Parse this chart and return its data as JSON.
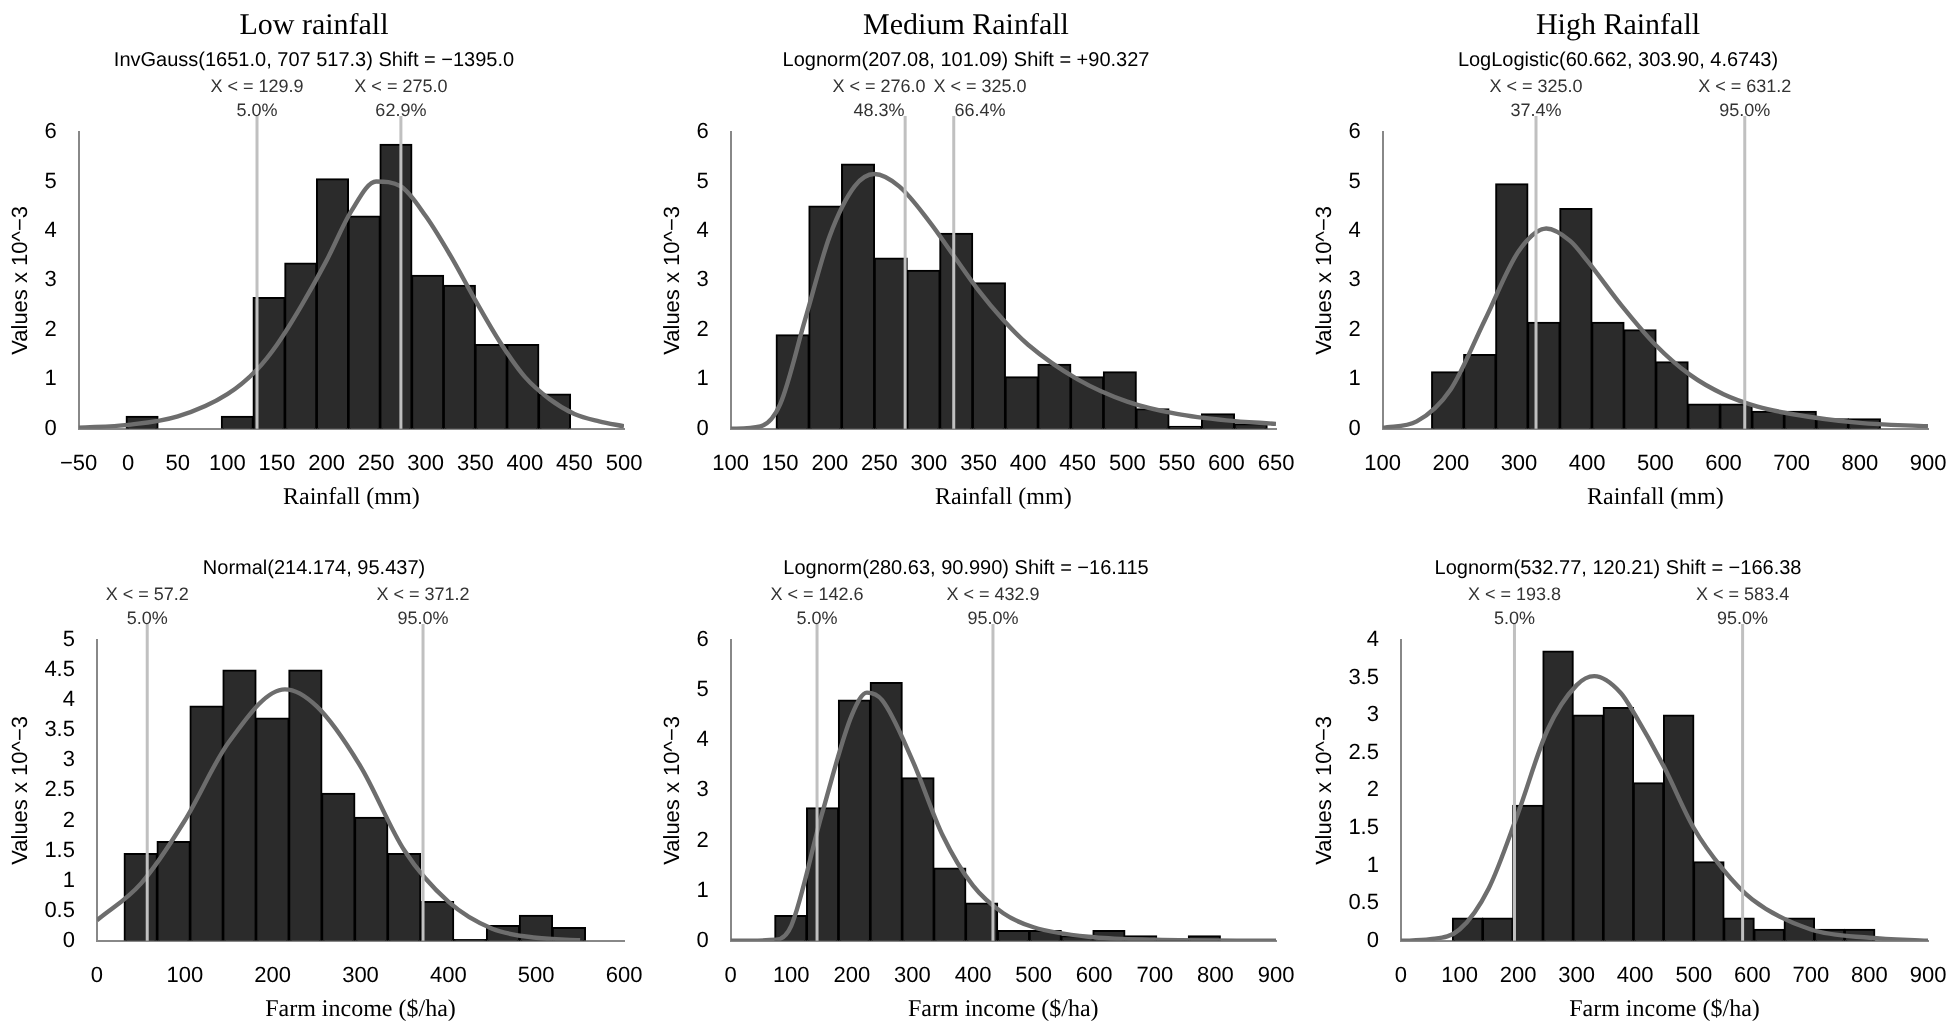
{
  "chart_data": [
    {
      "type": "histogram",
      "title": "Low rainfall",
      "subtitle": "InvGauss(1651.0, 707 517.3) Shift = −1395.0",
      "xlabel": "Rainfall (mm)",
      "ylabel": "Values x 10^−3",
      "color": "#2b2b2b",
      "legend": false,
      "marker": "none",
      "bins": [
        -2,
        30,
        62,
        94,
        126,
        158,
        190,
        222,
        254,
        286,
        318,
        350,
        382,
        414,
        446
      ],
      "values": [
        0.25,
        0,
        0,
        0.25,
        2.65,
        3.35,
        5.05,
        4.3,
        5.75,
        3.1,
        2.9,
        1.7,
        1.7,
        0.7
      ],
      "series": [
        {
          "type": "line",
          "color": "#6d6d6d",
          "x": [
            -50,
            0,
            50,
            100,
            130,
            150,
            175,
            200,
            225,
            250,
            275,
            300,
            325,
            350,
            375,
            400,
            425,
            450,
            475,
            500
          ],
          "values": [
            0.02,
            0.08,
            0.25,
            0.7,
            1.2,
            1.7,
            2.5,
            3.4,
            4.4,
            5.0,
            4.9,
            4.3,
            3.5,
            2.6,
            1.75,
            1.05,
            0.6,
            0.3,
            0.15,
            0.05
          ]
        }
      ],
      "ref_lines": [
        {
          "axis": "x",
          "value": 129.9,
          "label": "X < = 129.9\n5.0%",
          "color": "#c0c0c0"
        },
        {
          "axis": "x",
          "value": 275.0,
          "label": "X < = 275.0\n62.9%",
          "color": "#c0c0c0"
        }
      ],
      "xlim": [
        -50,
        500
      ],
      "xticks": [
        {
          "value": -50,
          "label": "−50"
        },
        0,
        50,
        100,
        150,
        200,
        250,
        300,
        350,
        400,
        450,
        500
      ],
      "ylim": [
        0,
        6
      ],
      "yticks": [
        0,
        1,
        2,
        3,
        4,
        5,
        6
      ]
    },
    {
      "type": "histogram",
      "title": "Medium Rainfall",
      "subtitle": "Lognorm(207.08, 101.09) Shift = +90.327",
      "xlabel": "Rainfall (mm)",
      "ylabel": "Values x 10^−3",
      "color": "#2b2b2b",
      "legend": false,
      "marker": "none",
      "bins": [
        146,
        179,
        212,
        245,
        278,
        311,
        344,
        377,
        410,
        443,
        476,
        509,
        542,
        575,
        608,
        641
      ],
      "values": [
        1.9,
        4.5,
        5.35,
        3.45,
        3.2,
        3.95,
        2.95,
        1.05,
        1.3,
        1.05,
        1.15,
        0.4,
        0.05,
        0.3,
        0.1
      ],
      "series": [
        {
          "type": "line",
          "color": "#6d6d6d",
          "x": [
            100,
            130,
            150,
            175,
            200,
            225,
            245,
            270,
            300,
            325,
            350,
            375,
            400,
            450,
            500,
            550,
            600,
            650
          ],
          "values": [
            0,
            0.05,
            0.5,
            2.2,
            3.9,
            4.9,
            5.15,
            4.9,
            4.2,
            3.5,
            2.8,
            2.2,
            1.7,
            1.0,
            0.55,
            0.3,
            0.17,
            0.1
          ]
        }
      ],
      "ref_lines": [
        {
          "axis": "x",
          "value": 276.0,
          "label": "X < = 276.0\n48.3%",
          "color": "#c0c0c0"
        },
        {
          "axis": "x",
          "value": 325.0,
          "label": "X < = 325.0\n66.4%",
          "color": "#c0c0c0"
        }
      ],
      "xlim": [
        100,
        650
      ],
      "xticks": [
        100,
        150,
        200,
        250,
        300,
        350,
        400,
        450,
        500,
        550,
        600,
        650
      ],
      "ylim": [
        0,
        6
      ],
      "yticks": [
        0,
        1,
        2,
        3,
        4,
        5,
        6
      ]
    },
    {
      "type": "histogram",
      "title": "High Rainfall",
      "subtitle": "LogLogistic(60.662, 303.90, 4.6743)",
      "xlabel": "Rainfall (mm)",
      "ylabel": "Values x 10^−3",
      "color": "#2b2b2b",
      "legend": false,
      "marker": "none",
      "bins": [
        172,
        219,
        266,
        313,
        360,
        407,
        454,
        501,
        548,
        595,
        642,
        689,
        736,
        783,
        830
      ],
      "values": [
        1.15,
        1.5,
        4.95,
        2.15,
        4.45,
        2.15,
        2.0,
        1.35,
        0.5,
        0.5,
        0.35,
        0.35,
        0.2,
        0.2
      ],
      "series": [
        {
          "type": "line",
          "color": "#6d6d6d",
          "x": [
            100,
            150,
            200,
            250,
            300,
            340,
            375,
            400,
            450,
            500,
            550,
            600,
            650,
            700,
            800,
            900
          ],
          "values": [
            0.02,
            0.15,
            0.8,
            2.2,
            3.6,
            4.05,
            3.8,
            3.4,
            2.5,
            1.7,
            1.1,
            0.7,
            0.45,
            0.3,
            0.12,
            0.05
          ]
        }
      ],
      "ref_lines": [
        {
          "axis": "x",
          "value": 325.0,
          "label": "X < = 325.0\n37.4%",
          "color": "#c0c0c0"
        },
        {
          "axis": "x",
          "value": 631.2,
          "label": "X < = 631.2\n95.0%",
          "color": "#c0c0c0"
        }
      ],
      "xlim": [
        100,
        900
      ],
      "xticks": [
        100,
        200,
        300,
        400,
        500,
        600,
        700,
        800,
        900
      ],
      "ylim": [
        0,
        6
      ],
      "yticks": [
        0,
        1,
        2,
        3,
        4,
        5,
        6
      ]
    },
    {
      "type": "histogram",
      "subtitle": "Normal(214.174, 95.437)",
      "xlabel": "Farm income ($/ha)",
      "ylabel": "Values x 10^−3",
      "color": "#2b2b2b",
      "legend": false,
      "marker": "none",
      "bins": [
        31,
        68.5,
        106,
        143.5,
        181,
        218.5,
        256,
        293.5,
        331,
        368.5,
        406,
        443.5,
        481,
        518.5,
        556
      ],
      "values": [
        1.45,
        1.65,
        3.9,
        4.5,
        3.7,
        4.5,
        2.45,
        2.05,
        1.45,
        0.65,
        0.02,
        0.25,
        0.42,
        0.22
      ],
      "series": [
        {
          "type": "line",
          "color": "#6d6d6d",
          "x": [
            0,
            50,
            100,
            150,
            214,
            250,
            300,
            350,
            400,
            450,
            500,
            550
          ],
          "values": [
            0.34,
            0.95,
            2.0,
            3.3,
            4.18,
            3.9,
            2.9,
            1.5,
            0.65,
            0.2,
            0.05,
            0.01
          ]
        }
      ],
      "ref_lines": [
        {
          "axis": "x",
          "value": 57.2,
          "label": "X < = 57.2\n5.0%",
          "color": "#c0c0c0"
        },
        {
          "axis": "x",
          "value": 371.2,
          "label": "X < = 371.2\n95.0%",
          "color": "#c0c0c0"
        }
      ],
      "xlim": [
        0,
        600
      ],
      "xticks": [
        0,
        100,
        200,
        300,
        400,
        500,
        600
      ],
      "ylim": [
        0,
        5
      ],
      "yticks": [
        0,
        0.5,
        1,
        1.5,
        2,
        2.5,
        3,
        3.5,
        4,
        4.5,
        5
      ]
    },
    {
      "type": "histogram",
      "subtitle": "Lognorm(280.63, 90.990) Shift = −16.115",
      "xlabel": "Farm income ($/ha)",
      "ylabel": "Values x 10^−3",
      "color": "#2b2b2b",
      "legend": false,
      "marker": "none",
      "bins": [
        73,
        125.5,
        178,
        230.5,
        283,
        335.5,
        388,
        440.5,
        493,
        545.5,
        598,
        650.5,
        703,
        755.5,
        808
      ],
      "values": [
        0.5,
        2.65,
        4.8,
        5.15,
        3.25,
        1.45,
        0.75,
        0.2,
        0.2,
        0.1,
        0.2,
        0.1,
        0.02,
        0.1
      ],
      "series": [
        {
          "type": "line",
          "color": "#6d6d6d",
          "x": [
            0,
            75,
            100,
            150,
            200,
            225,
            250,
            300,
            350,
            400,
            450,
            500,
            600,
            700,
            900
          ],
          "values": [
            0,
            0.02,
            0.3,
            2.5,
            4.5,
            4.95,
            4.8,
            3.6,
            2.1,
            1.1,
            0.55,
            0.27,
            0.07,
            0.02,
            0
          ]
        }
      ],
      "ref_lines": [
        {
          "axis": "x",
          "value": 142.6,
          "label": "X < = 142.6\n5.0%",
          "color": "#c0c0c0"
        },
        {
          "axis": "x",
          "value": 432.9,
          "label": "X < = 432.9\n95.0%",
          "color": "#c0c0c0"
        }
      ],
      "xlim": [
        0,
        900
      ],
      "xticks": [
        0,
        100,
        200,
        300,
        400,
        500,
        600,
        700,
        800,
        900
      ],
      "ylim": [
        0,
        6
      ],
      "yticks": [
        0,
        1,
        2,
        3,
        4,
        5,
        6
      ]
    },
    {
      "type": "histogram",
      "subtitle": "Lognorm(532.77, 120.21) Shift = −166.38",
      "xlabel": "Farm income ($/ha)",
      "ylabel": "Values x 10^−3",
      "color": "#2b2b2b",
      "legend": false,
      "marker": "none",
      "bins": [
        88,
        139.5,
        191,
        242.5,
        294,
        345.5,
        397,
        448.5,
        500,
        551.5,
        603,
        654.5,
        706,
        757.5,
        809
      ],
      "values": [
        0.3,
        0.3,
        1.8,
        3.85,
        3.0,
        3.1,
        2.1,
        3.0,
        1.05,
        0.3,
        0.15,
        0.3,
        0.15,
        0.15
      ],
      "series": [
        {
          "type": "line",
          "color": "#6d6d6d",
          "x": [
            0,
            50,
            100,
            150,
            200,
            250,
            300,
            330,
            375,
            400,
            450,
            500,
            550,
            600,
            700,
            800,
            900
          ],
          "values": [
            0,
            0.02,
            0.15,
            0.7,
            1.7,
            2.8,
            3.4,
            3.52,
            3.3,
            3.0,
            2.3,
            1.5,
            0.95,
            0.55,
            0.15,
            0.04,
            0
          ]
        }
      ],
      "ref_lines": [
        {
          "axis": "x",
          "value": 193.8,
          "label": "X < = 193.8\n5.0%",
          "color": "#c0c0c0"
        },
        {
          "axis": "x",
          "value": 583.4,
          "label": "X < = 583.4\n95.0%",
          "color": "#c0c0c0"
        }
      ],
      "xlim": [
        0,
        900
      ],
      "xticks": [
        0,
        100,
        200,
        300,
        400,
        500,
        600,
        700,
        800,
        900
      ],
      "ylim": [
        0,
        4
      ],
      "yticks": [
        0,
        0.5,
        1,
        1.5,
        2,
        2.5,
        3,
        3.5,
        4
      ]
    }
  ]
}
